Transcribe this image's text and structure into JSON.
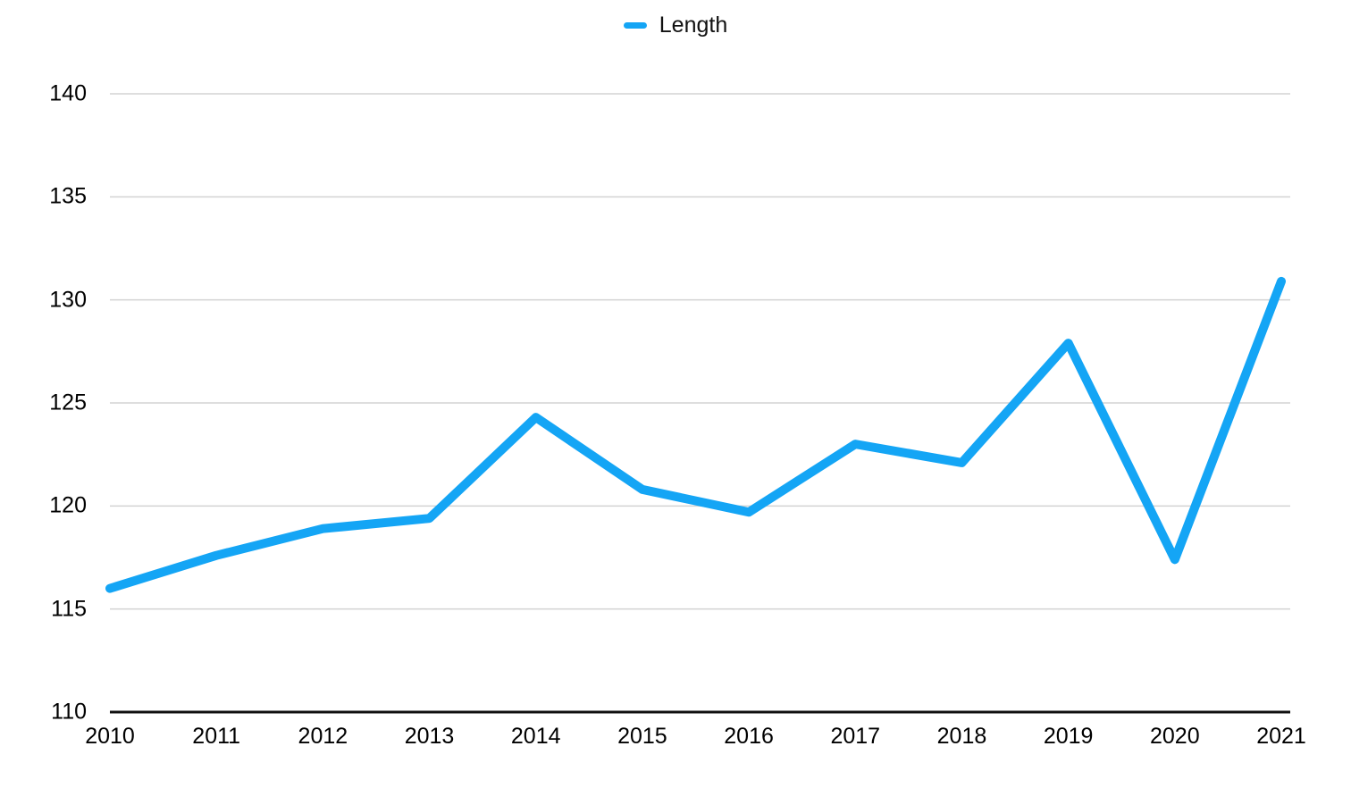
{
  "chart_data": {
    "type": "line",
    "title": "",
    "xlabel": "",
    "ylabel": "",
    "categories": [
      "2010",
      "2011",
      "2012",
      "2013",
      "2014",
      "2015",
      "2016",
      "2017",
      "2018",
      "2019",
      "2020",
      "2021"
    ],
    "series": [
      {
        "name": "Length",
        "color": "#14A5F5",
        "values": [
          116.0,
          117.6,
          118.9,
          119.4,
          124.3,
          120.8,
          119.7,
          123.0,
          122.1,
          127.9,
          117.4,
          130.9
        ]
      }
    ],
    "ylim": [
      110,
      140
    ],
    "yticks": [
      110,
      115,
      120,
      125,
      130,
      135,
      140
    ],
    "grid": true,
    "legend_position": "top-center"
  },
  "styles": {
    "line_color": "#14A5F5",
    "gridline_color": "#d3d3d3",
    "axis_baseline_color": "#111111",
    "tick_label_color": "#000000"
  }
}
